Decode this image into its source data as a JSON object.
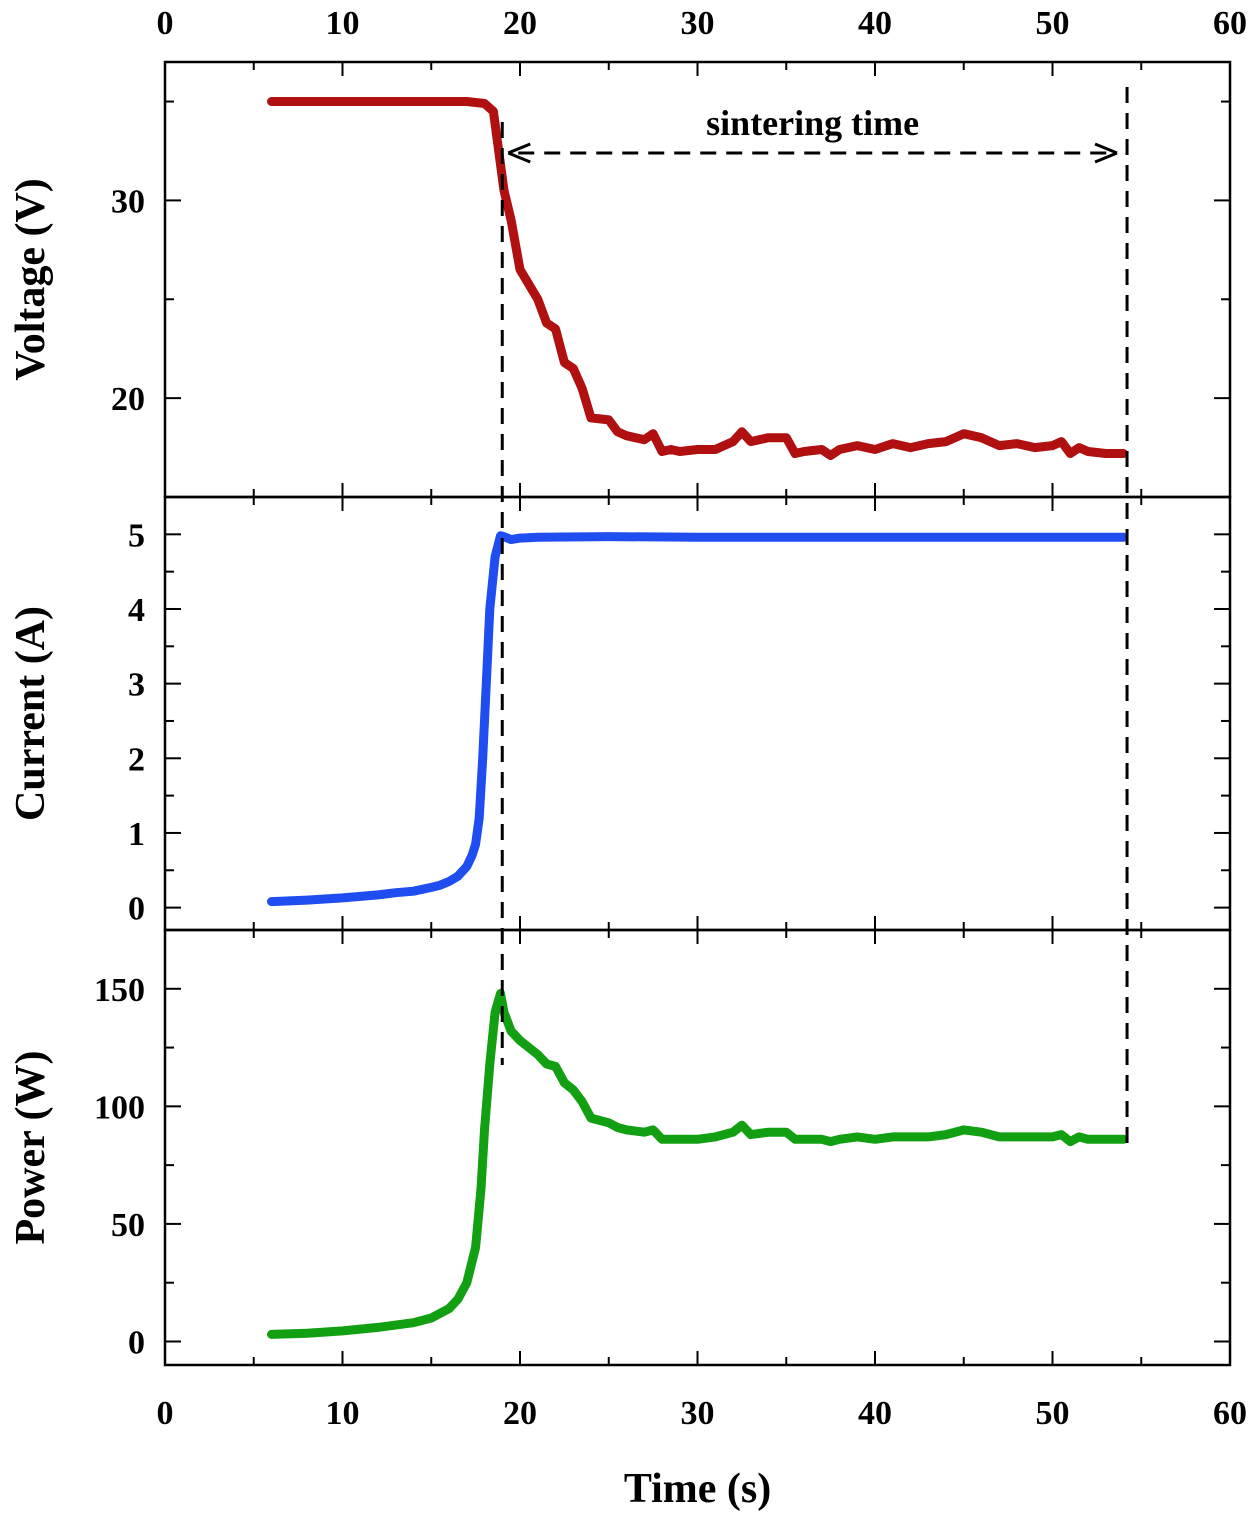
{
  "chart_data": {
    "type": "line",
    "layout": "three vertically stacked panels sharing one x axis",
    "xlabel": "Time (s)",
    "xlim": [
      0,
      60
    ],
    "xticks": [
      0,
      10,
      20,
      30,
      40,
      50,
      60
    ],
    "xtick_labels": [
      "0",
      "10",
      "20",
      "30",
      "40",
      "50",
      "60"
    ],
    "x_axis_labels_top": true,
    "x_axis_labels_bottom": true,
    "grid": false,
    "legend": "none",
    "annotation": {
      "text": "sintering time",
      "arrow_from_x": 19,
      "arrow_to_x": 54.2,
      "arrow_y": 32.4,
      "dashed_verticals_x": [
        19,
        54.2
      ]
    },
    "panels": [
      {
        "ylabel": "Voltage (V)",
        "ylim": [
          15,
          37
        ],
        "yticks": [
          20,
          30
        ],
        "ytick_labels": [
          "20",
          "30"
        ],
        "color": "#b01010",
        "x": [
          6,
          10,
          14,
          17,
          18,
          18.5,
          18.8,
          19.1,
          19.5,
          20,
          21,
          21.5,
          22,
          22.5,
          23,
          23.5,
          24,
          25,
          25.5,
          26,
          27,
          27.5,
          28,
          28.5,
          29,
          30,
          31,
          32,
          32.5,
          33,
          34,
          35,
          35.5,
          36,
          37,
          37.5,
          38,
          39,
          40,
          41,
          42,
          43,
          44,
          45,
          46,
          47,
          48,
          49,
          50,
          50.5,
          51,
          51.5,
          52,
          53,
          54
        ],
        "y": [
          35,
          35,
          35,
          35,
          34.9,
          34.5,
          32.5,
          30.5,
          29,
          26.5,
          25,
          23.8,
          23.5,
          21.8,
          21.5,
          20.5,
          19,
          18.9,
          18.3,
          18.1,
          17.9,
          18.2,
          17.3,
          17.4,
          17.3,
          17.4,
          17.4,
          17.8,
          18.3,
          17.8,
          18.0,
          18.0,
          17.2,
          17.3,
          17.4,
          17.1,
          17.4,
          17.6,
          17.4,
          17.7,
          17.5,
          17.7,
          17.8,
          18.2,
          18.0,
          17.6,
          17.7,
          17.5,
          17.6,
          17.8,
          17.2,
          17.5,
          17.3,
          17.2,
          17.2
        ]
      },
      {
        "ylabel": "Current (A)",
        "ylim": [
          -0.3,
          5.5
        ],
        "yticks": [
          0,
          1,
          2,
          3,
          4,
          5
        ],
        "ytick_labels": [
          "0",
          "1",
          "2",
          "3",
          "4",
          "5"
        ],
        "color": "#1f4df0",
        "x": [
          6,
          8,
          10,
          12,
          13,
          14,
          15,
          15.5,
          16,
          16.5,
          17,
          17.3,
          17.5,
          17.7,
          17.9,
          18.1,
          18.3,
          18.6,
          18.9,
          19.1,
          19.5,
          20,
          21,
          25,
          30,
          40,
          50,
          54
        ],
        "y": [
          0.08,
          0.1,
          0.13,
          0.17,
          0.2,
          0.22,
          0.27,
          0.3,
          0.35,
          0.42,
          0.55,
          0.7,
          0.85,
          1.2,
          2.0,
          3.0,
          4.0,
          4.7,
          4.98,
          4.97,
          4.93,
          4.95,
          4.96,
          4.97,
          4.96,
          4.96,
          4.96,
          4.96
        ]
      },
      {
        "ylabel": "Power (W)",
        "ylim": [
          -10,
          175
        ],
        "yticks": [
          0,
          50,
          100,
          150
        ],
        "ytick_labels": [
          "0",
          "50",
          "100",
          "150"
        ],
        "color": "#12a012",
        "x": [
          6,
          8,
          10,
          12,
          14,
          15,
          16,
          16.5,
          17,
          17.5,
          17.8,
          18,
          18.3,
          18.6,
          18.9,
          19.1,
          19.5,
          20,
          21,
          21.5,
          22,
          22.5,
          23,
          23.5,
          24,
          25,
          25.5,
          26,
          27,
          27.5,
          28,
          29,
          30,
          31,
          32,
          32.5,
          33,
          34,
          35,
          35.5,
          36,
          37,
          37.5,
          38,
          39,
          40,
          41,
          42,
          43,
          44,
          45,
          46,
          47,
          48,
          49,
          50,
          50.5,
          51,
          51.5,
          52,
          53,
          54
        ],
        "y": [
          3,
          3.5,
          4.5,
          6,
          8,
          10,
          14,
          18,
          25,
          40,
          65,
          90,
          118,
          140,
          148,
          140,
          132,
          128,
          122,
          118,
          117,
          110,
          107,
          102,
          95,
          93,
          91,
          90,
          89,
          90,
          86,
          86,
          86,
          87,
          89,
          92,
          88,
          89,
          89,
          86,
          86,
          86,
          85,
          86,
          87,
          86,
          87,
          87,
          87,
          88,
          90,
          89,
          87,
          87,
          87,
          87,
          88,
          85,
          87,
          86,
          86,
          86
        ]
      }
    ]
  }
}
